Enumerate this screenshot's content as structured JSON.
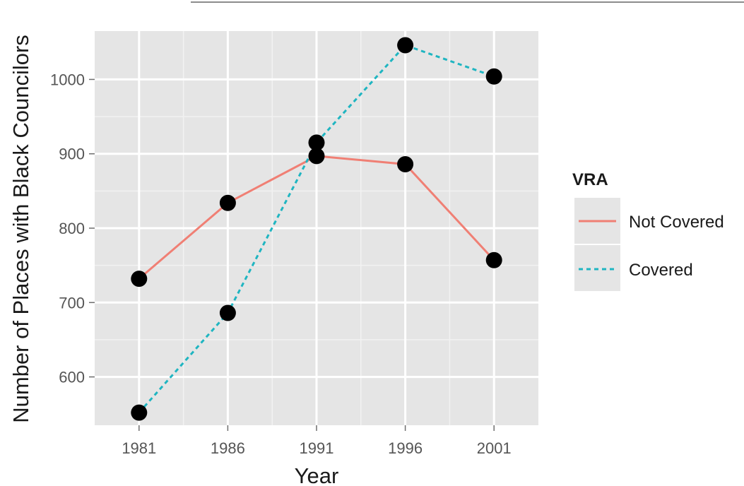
{
  "chart_data": {
    "type": "line",
    "xlabel": "Year",
    "ylabel": "Number of Places with Black Councilors",
    "x": [
      1981,
      1986,
      1991,
      1996,
      2001
    ],
    "xlim": [
      1978.5,
      2003.5
    ],
    "ylim": [
      535,
      1065
    ],
    "yticks": [
      600,
      700,
      800,
      900,
      1000
    ],
    "grid": true,
    "legend_title": "VRA",
    "legend_position": "right",
    "series": [
      {
        "name": "Not Covered",
        "values": [
          732,
          834,
          897,
          886,
          757
        ],
        "color": "#f07f74",
        "dash": "solid"
      },
      {
        "name": "Covered",
        "values": [
          552,
          686,
          915,
          1046,
          1004
        ],
        "color": "#1fb5c1",
        "dash": "dashed"
      }
    ],
    "panel_color": "#e5e5e5",
    "marker_color": "#000000"
  }
}
